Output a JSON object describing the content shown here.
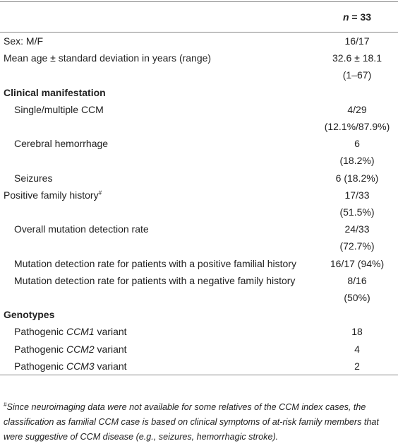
{
  "table": {
    "header": {
      "var": "n",
      "rest": "= 33"
    },
    "rows": [
      {
        "label": "Sex: M/F",
        "values": [
          "16/17"
        ]
      },
      {
        "label": "Mean age ± standard deviation in years (range)",
        "values": [
          "32.6 ± 18.1",
          "(1–67)"
        ]
      },
      {
        "label": "Clinical manifestation",
        "children": [
          {
            "label": "Single/multiple CCM",
            "values": [
              "4/29",
              "(12.1%/87.9%)"
            ]
          },
          {
            "label": "Cerebral hemorrhage",
            "values": [
              "6",
              "(18.2%)"
            ]
          },
          {
            "label": "Seizures",
            "values": [
              "6 (18.2%)"
            ]
          }
        ]
      },
      {
        "label": "Positive family history",
        "note": "#",
        "values": [
          "17/33",
          "(51.5%)"
        ],
        "children": [
          {
            "label": "Overall mutation detection rate",
            "values": [
              "24/33",
              "(72.7%)"
            ]
          },
          {
            "label": "Mutation detection rate for patients with a positive familial history",
            "values": [
              "16/17 (94%)"
            ]
          },
          {
            "label": "Mutation detection rate for patients with a negative family history",
            "values": [
              "8/16",
              "(50%)"
            ]
          }
        ]
      },
      {
        "label": "Genotypes",
        "children": [
          {
            "label": {
              "pre": "Pathogenic",
              "gene": "CCM1",
              "post": "variant"
            },
            "values": [
              "18"
            ]
          },
          {
            "label": {
              "pre": "Pathogenic",
              "gene": "CCM2",
              "post": "variant"
            },
            "values": [
              "4"
            ]
          },
          {
            "label": {
              "pre": "Pathogenic",
              "gene": "CCM3",
              "post": "variant"
            },
            "values": [
              "2"
            ]
          }
        ]
      }
    ],
    "footnote": {
      "mark": "#",
      "text": "Since neuroimaging data were not available for some relatives of the CCM index cases, the classification as familial CCM case is based on clinical symptoms of at-risk family members that were suggestive of CCM disease (e.g., seizures, hemorrhagic stroke)."
    }
  }
}
